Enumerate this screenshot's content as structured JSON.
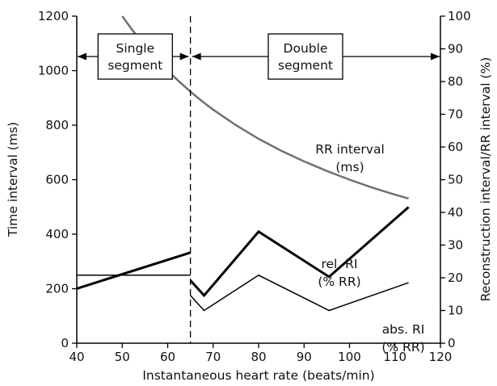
{
  "colors": {
    "rr_curve": "#707070",
    "ink": "#000000",
    "background": "#ffffff"
  },
  "chart_data": {
    "type": "line",
    "title": "",
    "xlabel": "Instantaneous heart rate (beats/min)",
    "ylabel": "Time interval (ms)",
    "y2label": "Reconstruction interval/RR interval (%)",
    "xlim": [
      40,
      120
    ],
    "ylim": [
      0,
      1200
    ],
    "y2lim": [
      0,
      100
    ],
    "x_ticks": [
      40,
      50,
      60,
      70,
      80,
      90,
      100,
      110,
      120
    ],
    "y_ticks": [
      0,
      200,
      400,
      600,
      800,
      1000,
      1200
    ],
    "y2_ticks": [
      0,
      10,
      20,
      30,
      40,
      50,
      60,
      70,
      80,
      90,
      100
    ],
    "grid": false,
    "legend": "none",
    "divider_x": 65,
    "regions": [
      {
        "label_line1": "Single",
        "label_line2": "segment",
        "x_start": 40,
        "x_end": 65
      },
      {
        "label_line1": "Double",
        "label_line2": "segment",
        "x_start": 65,
        "x_end": 120
      }
    ],
    "series": [
      {
        "id": "rr",
        "axis": "left",
        "color": "#707070",
        "stroke_width": 2.5,
        "points": [
          [
            50,
            1200
          ],
          [
            52,
            1154
          ],
          [
            55,
            1091
          ],
          [
            58,
            1034
          ],
          [
            60,
            1000
          ],
          [
            62,
            968
          ],
          [
            65,
            923
          ],
          [
            68,
            882
          ],
          [
            70,
            857
          ],
          [
            75,
            800
          ],
          [
            80,
            750
          ],
          [
            85,
            706
          ],
          [
            90,
            667
          ],
          [
            95,
            632
          ],
          [
            100,
            600
          ],
          [
            105,
            571
          ],
          [
            110,
            545
          ],
          [
            113,
            531
          ]
        ]
      },
      {
        "id": "rel",
        "axis": "right",
        "color": "#000000",
        "stroke_width": 3,
        "segments": [
          [
            [
              40,
              16.7
            ],
            [
              65,
              27.7
            ]
          ],
          [
            [
              65,
              19.2
            ],
            [
              68,
              14.6
            ],
            [
              80,
              34.1
            ],
            [
              95.5,
              20.3
            ],
            [
              113,
              41.6
            ]
          ]
        ]
      },
      {
        "id": "abs",
        "axis": "right",
        "color": "#000000",
        "stroke_width": 1.5,
        "segments": [
          [
            [
              40,
              20.8
            ],
            [
              65,
              20.8
            ]
          ],
          [
            [
              65,
              14.6
            ],
            [
              68,
              10.0
            ],
            [
              80,
              20.8
            ],
            [
              95.5,
              10.0
            ],
            [
              113,
              18.5
            ]
          ]
        ]
      }
    ],
    "annotations": [
      {
        "line1": "RR interval",
        "line2": "(ms)"
      },
      {
        "line1": "rel. RI",
        "line2": "(% RR)"
      },
      {
        "line1": "abs. RI",
        "line2": "(% RR)"
      }
    ]
  }
}
